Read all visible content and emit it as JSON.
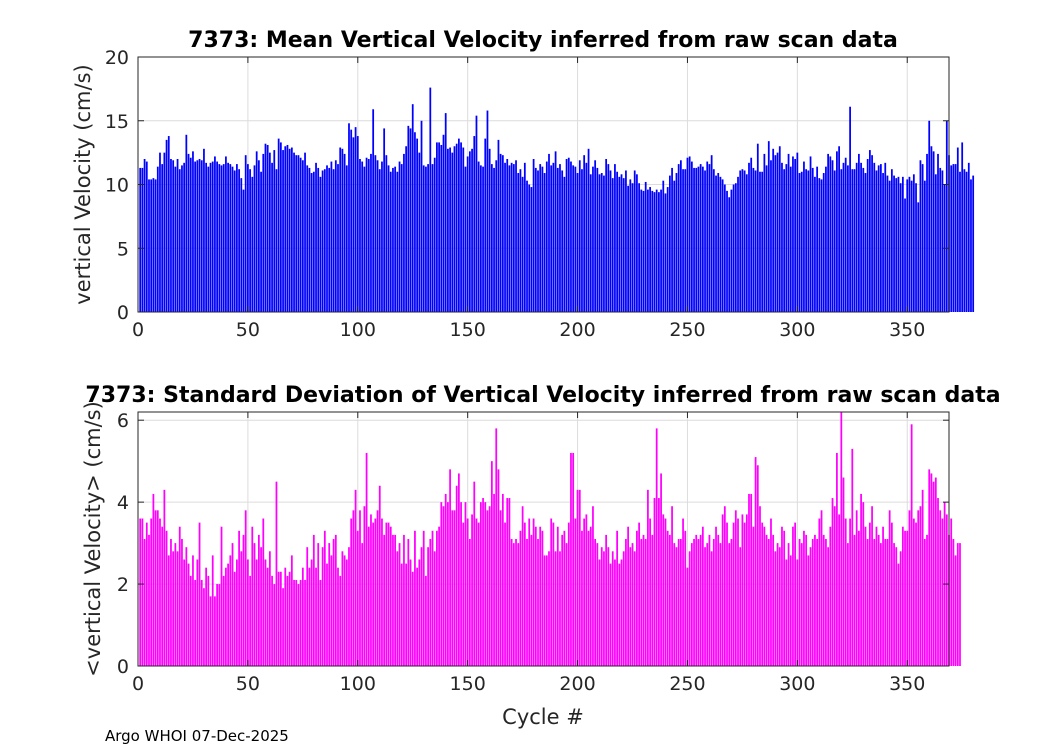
{
  "chart_data": [
    {
      "type": "bar",
      "title": "7373: Mean Vertical Velocity inferred from raw scan data",
      "xlabel": "",
      "ylabel": "vertical Velocity (cm/s)",
      "xlim": [
        0,
        369
      ],
      "ylim": [
        0,
        20
      ],
      "xticks": [
        0,
        50,
        100,
        150,
        200,
        250,
        300,
        350
      ],
      "yticks": [
        0,
        5,
        10,
        15,
        20
      ],
      "grid": true,
      "color": "#0000ff",
      "x_start": 1,
      "values": [
        11.3,
        11.3,
        12.0,
        11.8,
        10.4,
        10.4,
        10.5,
        10.4,
        11.4,
        12.5,
        11.6,
        12.5,
        13.5,
        13.8,
        12.0,
        11.9,
        11.4,
        12.0,
        11.2,
        11.5,
        11.7,
        13.9,
        12.4,
        12.1,
        12.6,
        11.8,
        11.9,
        12.0,
        11.9,
        12.8,
        11.7,
        11.4,
        11.7,
        11.8,
        12.2,
        11.8,
        11.6,
        11.5,
        11.6,
        12.2,
        11.7,
        11.6,
        11.4,
        11.1,
        11.6,
        11.2,
        10.5,
        9.6,
        12.3,
        11.6,
        11.2,
        10.6,
        11.5,
        12.6,
        11.9,
        11.0,
        12.4,
        13.2,
        13.1,
        12.5,
        11.7,
        12.7,
        11.2,
        13.6,
        13.3,
        12.7,
        13.0,
        13.1,
        12.8,
        12.9,
        12.5,
        12.3,
        12.3,
        12.1,
        11.9,
        12.5,
        11.5,
        11.3,
        10.9,
        11.0,
        11.7,
        11.3,
        10.6,
        11.1,
        11.2,
        11.5,
        11.3,
        11.8,
        11.2,
        11.9,
        11.6,
        12.9,
        12.8,
        12.4,
        11.5,
        14.8,
        14.3,
        13.7,
        14.5,
        13.8,
        12.0,
        11.8,
        11.4,
        12.1,
        12.0,
        12.4,
        15.9,
        12.3,
        11.9,
        11.2,
        11.8,
        14.4,
        12.3,
        11.5,
        11.0,
        11.3,
        11.4,
        11.0,
        11.8,
        11.6,
        12.4,
        13.0,
        14.6,
        14.4,
        16.3,
        14.1,
        13.6,
        12.5,
        15.0,
        11.5,
        11.4,
        11.6,
        17.6,
        11.6,
        12.1,
        13.3,
        13.3,
        13.1,
        13.9,
        15.6,
        12.8,
        12.9,
        12.5,
        13.0,
        13.2,
        13.6,
        13.3,
        12.9,
        11.4,
        12.2,
        12.6,
        12.8,
        13.8,
        15.4,
        11.8,
        11.5,
        11.4,
        13.6,
        15.8,
        12.8,
        11.6,
        11.3,
        11.9,
        13.5,
        12.4,
        12.3,
        11.7,
        12.0,
        11.5,
        11.7,
        11.6,
        11.9,
        10.9,
        11.2,
        10.6,
        11.7,
        10.3,
        10.0,
        9.8,
        12.0,
        11.3,
        11.1,
        11.6,
        11.4,
        10.9,
        11.8,
        12.4,
        11.5,
        11.7,
        12.6,
        11.3,
        11.6,
        11.1,
        10.6,
        12.0,
        12.1,
        11.8,
        11.5,
        11.4,
        10.9,
        11.9,
        11.2,
        12.3,
        11.7,
        12.8,
        10.8,
        11.4,
        11.9,
        11.3,
        10.8,
        10.9,
        10.7,
        12.0,
        11.6,
        11.1,
        10.5,
        11.6,
        11.0,
        10.6,
        10.8,
        10.5,
        11.1,
        9.9,
        10.4,
        10.1,
        11.1,
        10.8,
        10.1,
        9.6,
        9.5,
        10.2,
        9.6,
        9.8,
        9.5,
        9.4,
        9.6,
        9.4,
        9.6,
        10.3,
        9.3,
        9.8,
        10.7,
        11.3,
        10.3,
        10.9,
        11.6,
        11.9,
        11.2,
        11.2,
        12.1,
        12.2,
        11.8,
        11.3,
        11.3,
        11.4,
        11.6,
        11.4,
        11.1,
        11.8,
        11.6,
        12.3,
        11.2,
        10.7,
        10.9,
        10.6,
        10.4,
        10.0,
        9.5,
        9.0,
        9.6,
        10.0,
        10.1,
        10.6,
        11.1,
        11.2,
        11.1,
        10.8,
        11.7,
        12.1,
        11.3,
        11.1,
        13.2,
        11.0,
        11.0,
        12.4,
        11.5,
        13.4,
        11.9,
        12.8,
        12.3,
        12.5,
        13.0,
        11.7,
        11.2,
        11.6,
        12.4,
        11.4,
        12.2,
        12.0,
        12.5,
        10.9,
        11.0,
        11.8,
        11.2,
        11.1,
        12.2,
        11.3,
        10.6,
        11.4,
        10.5,
        10.4,
        10.9,
        11.4,
        12.4,
        12.2,
        11.9,
        11.1,
        12.6,
        13.0,
        11.2,
        11.7,
        12.1,
        11.5,
        16.1,
        11.2,
        11.2,
        11.7,
        12.4,
        11.7,
        11.3,
        10.9,
        12.0,
        12.7,
        12.3,
        11.7,
        11.1,
        11.5,
        11.6,
        10.9,
        11.7,
        10.7,
        10.3,
        11.2,
        10.7,
        10.5,
        10.6,
        10.1,
        10.6,
        8.9,
        10.4,
        10.6,
        10.3,
        10.8,
        10.1,
        8.6,
        11.9,
        11.6,
        10.3,
        12.4,
        15.0,
        13.0,
        12.6,
        10.8,
        12.4,
        11.3,
        11.1,
        10.0,
        15.0,
        12.3,
        11.5,
        11.6,
        11.6,
        12.9,
        11.0,
        13.3,
        11.2,
        11.0,
        11.7,
        10.4,
        10.7
      ]
    },
    {
      "type": "bar",
      "title": "7373: Standard Deviation of Vertical Velocity inferred from raw scan data",
      "xlabel": "Cycle #",
      "ylabel": "<vertical Velocity> (cm/s)",
      "xlim": [
        0,
        369
      ],
      "ylim": [
        0,
        6.2
      ],
      "xticks": [
        0,
        50,
        100,
        150,
        200,
        250,
        300,
        350
      ],
      "yticks": [
        0,
        2,
        4,
        6
      ],
      "grid": true,
      "color": "#ff00ff",
      "x_start": 1,
      "values": [
        3.6,
        3.6,
        3.1,
        3.5,
        3.2,
        3.6,
        4.2,
        3.8,
        3.8,
        3.6,
        3.4,
        4.3,
        3.3,
        2.7,
        3.1,
        2.8,
        3.0,
        2.8,
        3.4,
        3.1,
        2.6,
        2.9,
        2.5,
        2.2,
        2.7,
        2.1,
        2.6,
        3.5,
        2.1,
        1.9,
        2.4,
        2.2,
        1.7,
        2.7,
        1.7,
        2.0,
        2.0,
        3.4,
        2.2,
        2.4,
        2.5,
        2.7,
        3.0,
        2.3,
        2.6,
        3.3,
        2.8,
        3.2,
        3.8,
        2.6,
        2.2,
        3.4,
        3.0,
        2.6,
        3.2,
        2.9,
        3.6,
        2.6,
        2.4,
        2.8,
        2.2,
        2.0,
        4.5,
        2.3,
        2.3,
        1.9,
        2.4,
        2.2,
        2.3,
        2.7,
        2.1,
        2.1,
        2.0,
        2.1,
        2.4,
        2.1,
        2.9,
        2.4,
        2.6,
        3.2,
        2.4,
        3.0,
        2.1,
        2.9,
        3.3,
        2.5,
        3.0,
        2.7,
        3.1,
        3.2,
        2.4,
        2.2,
        2.8,
        2.7,
        2.6,
        2.9,
        3.6,
        3.8,
        4.3,
        3.3,
        3.8,
        3.0,
        3.9,
        5.2,
        3.4,
        3.7,
        3.5,
        3.6,
        3.8,
        4.4,
        3.6,
        3.2,
        3.5,
        3.5,
        3.4,
        3.2,
        3.2,
        2.8,
        3.0,
        2.5,
        3.2,
        2.5,
        3.1,
        2.6,
        2.3,
        3.3,
        2.4,
        2.6,
        2.9,
        3.3,
        2.2,
        2.9,
        3.1,
        3.3,
        2.8,
        3.3,
        3.4,
        4.0,
        3.9,
        4.2,
        4.0,
        4.8,
        3.8,
        3.8,
        4.4,
        4.7,
        4.0,
        3.5,
        4.0,
        3.6,
        3.1,
        3.7,
        4.5,
        3.6,
        3.5,
        4.0,
        4.1,
        4.0,
        3.8,
        3.9,
        5.0,
        4.2,
        5.8,
        4.8,
        3.8,
        4.2,
        3.5,
        4.1,
        4.1,
        3.1,
        3.0,
        3.1,
        3.0,
        3.3,
        3.9,
        3.5,
        3.1,
        3.6,
        3.2,
        3.6,
        3.4,
        3.1,
        3.4,
        3.3,
        2.7,
        2.7,
        2.8,
        3.6,
        3.5,
        2.8,
        3.4,
        2.8,
        3.2,
        3.3,
        3.0,
        3.5,
        5.2,
        5.2,
        3.6,
        4.3,
        4.3,
        3.3,
        3.6,
        3.7,
        3.3,
        3.4,
        3.9,
        3.1,
        3.0,
        2.6,
        2.9,
        2.8,
        3.2,
        2.9,
        2.5,
        2.8,
        2.6,
        3.3,
        2.5,
        2.6,
        2.8,
        3.1,
        3.4,
        2.9,
        3.0,
        2.8,
        3.3,
        3.5,
        3.1,
        3.2,
        3.1,
        4.3,
        3.6,
        3.2,
        4.1,
        5.8,
        4.1,
        4.7,
        3.7,
        3.6,
        3.3,
        3.2,
        3.9,
        3.0,
        2.9,
        3.1,
        3.1,
        3.6,
        3.3,
        2.4,
        2.8,
        3.0,
        3.1,
        3.2,
        3.1,
        3.2,
        3.4,
        2.9,
        3.0,
        3.2,
        2.8,
        3.1,
        3.4,
        3.2,
        3.0,
        3.7,
        3.9,
        3.5,
        3.0,
        3.1,
        3.5,
        3.8,
        3.6,
        2.9,
        3.7,
        3.5,
        3.7,
        4.2,
        4.2,
        3.4,
        5.1,
        4.9,
        3.9,
        3.5,
        3.4,
        3.2,
        3.1,
        3.6,
        3.2,
        2.8,
        3.0,
        2.9,
        3.4,
        3.3,
        2.6,
        3.0,
        2.7,
        3.4,
        3.5,
        2.6,
        3.1,
        3.0,
        3.3,
        3.2,
        2.7,
        2.9,
        3.1,
        3.2,
        3.1,
        3.6,
        3.8,
        3.2,
        3.1,
        2.9,
        3.4,
        4.1,
        3.9,
        5.2,
        3.7,
        6.2,
        4.6,
        3.6,
        3.0,
        3.6,
        5.3,
        3.2,
        3.8,
        3.3,
        4.2,
        4.0,
        3.4,
        3.1,
        3.5,
        3.9,
        3.1,
        3.4,
        3.2,
        3.0,
        3.4,
        3.1,
        3.1,
        3.8,
        3.5,
        3.0,
        2.9,
        2.5,
        2.8,
        3.4,
        3.3,
        3.3,
        3.8,
        5.9,
        3.6,
        3.5,
        3.8,
        3.9,
        4.3,
        3.1,
        3.2,
        4.8,
        4.7,
        4.5,
        4.6,
        4.1,
        3.8,
        3.6,
        4.0,
        3.7,
        3.2,
        3.6,
        3.1,
        2.7,
        3.0,
        3.0
      ]
    }
  ],
  "footer": "Argo WHOI 07-Dec-2025"
}
